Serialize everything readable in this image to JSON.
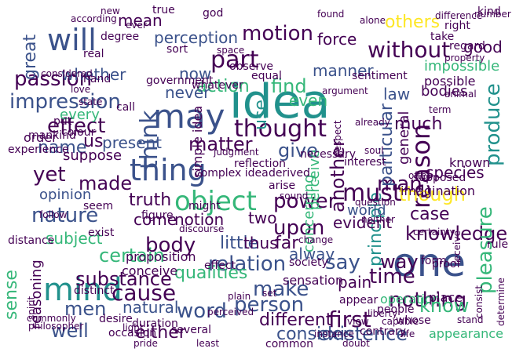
{
  "palette": {
    "purple": "#440154",
    "indigo": "#3b528b",
    "blue": "#31688e",
    "teal": "#21918c",
    "green": "#35b779",
    "lime": "#90d743",
    "yellow": "#fde725",
    "darkblue": "#2c3e7a"
  },
  "words": [
    {
      "text": "idea",
      "color": "#21918c"
    },
    {
      "text": "one",
      "color": "#3b528b"
    },
    {
      "text": "mind",
      "color": "#21918c"
    },
    {
      "text": "will",
      "color": "#3b528b"
    },
    {
      "text": "may",
      "color": "#3b528b"
    },
    {
      "text": "thing",
      "color": "#3b528b"
    },
    {
      "text": "object",
      "color": "#35b779"
    },
    {
      "text": "reason",
      "color": "#440154"
    },
    {
      "text": "without",
      "color": "#440154"
    },
    {
      "text": "think",
      "color": "#3b528b"
    },
    {
      "text": "part",
      "color": "#440154"
    },
    {
      "text": "passion",
      "color": "#440154"
    },
    {
      "text": "impression",
      "color": "#3b528b"
    },
    {
      "text": "action",
      "color": "#35b779"
    },
    {
      "text": "motion",
      "color": "#440154"
    },
    {
      "text": "find",
      "color": "#35b779"
    },
    {
      "text": "man",
      "color": "#440154"
    },
    {
      "text": "effect",
      "color": "#440154"
    },
    {
      "text": "thought",
      "color": "#440154"
    },
    {
      "text": "principle",
      "color": "#21918c"
    },
    {
      "text": "particular",
      "color": "#3b528b"
    },
    {
      "text": "produce",
      "color": "#21918c"
    },
    {
      "text": "another",
      "color": "#440154"
    },
    {
      "text": "nature",
      "color": "#3b528b"
    },
    {
      "text": "certain",
      "color": "#35b779"
    },
    {
      "text": "substance",
      "color": "#440154"
    },
    {
      "text": "cause",
      "color": "#440154"
    },
    {
      "text": "sense",
      "color": "#35b779"
    },
    {
      "text": "make",
      "color": "#3b528b"
    },
    {
      "text": "men",
      "color": "#3b528b"
    },
    {
      "text": "relation",
      "color": "#3b528b"
    },
    {
      "text": "person",
      "color": "#3b528b"
    },
    {
      "text": "different",
      "color": "#440154"
    },
    {
      "text": "nothing",
      "color": "#440154"
    },
    {
      "text": "knowledge",
      "color": "#440154"
    },
    {
      "text": "pleasure",
      "color": "#35b779"
    },
    {
      "text": "time",
      "color": "#440154"
    },
    {
      "text": "say",
      "color": "#3b528b"
    },
    {
      "text": "must",
      "color": "#440154"
    },
    {
      "text": "upon",
      "color": "#440154"
    },
    {
      "text": "power",
      "color": "#440154"
    },
    {
      "text": "though",
      "color": "#fde725"
    },
    {
      "text": "made",
      "color": "#440154"
    },
    {
      "text": "word",
      "color": "#3b528b"
    },
    {
      "text": "either",
      "color": "#440154"
    },
    {
      "text": "first",
      "color": "#440154"
    },
    {
      "text": "existence",
      "color": "#3b528b"
    },
    {
      "text": "well",
      "color": "#3b528b"
    },
    {
      "text": "great",
      "color": "#3b528b"
    },
    {
      "text": "others",
      "color": "#fde725"
    },
    {
      "text": "good",
      "color": "#440154"
    },
    {
      "text": "much",
      "color": "#440154"
    },
    {
      "text": "law",
      "color": "#3b528b"
    },
    {
      "text": "name",
      "color": "#3b528b"
    },
    {
      "text": "us",
      "color": "#440154"
    },
    {
      "text": "matter",
      "color": "#440154"
    },
    {
      "text": "give",
      "color": "#3b528b"
    },
    {
      "text": "yet",
      "color": "#440154"
    },
    {
      "text": "truth",
      "color": "#440154"
    },
    {
      "text": "case",
      "color": "#440154"
    },
    {
      "text": "body",
      "color": "#440154"
    },
    {
      "text": "know",
      "color": "#35b779"
    },
    {
      "text": "way",
      "color": "#440154"
    },
    {
      "text": "consider",
      "color": "#3b528b"
    },
    {
      "text": "qualities",
      "color": "#35b779"
    },
    {
      "text": "notion",
      "color": "#440154"
    },
    {
      "text": "present",
      "color": "#3b528b"
    },
    {
      "text": "whether",
      "color": "#3b528b"
    },
    {
      "text": "perception",
      "color": "#3b528b"
    },
    {
      "text": "force",
      "color": "#440154"
    },
    {
      "text": "never",
      "color": "#3b528b"
    },
    {
      "text": "use",
      "color": "#21918c"
    },
    {
      "text": "even",
      "color": "#35b779"
    },
    {
      "text": "every",
      "color": "#35b779"
    },
    {
      "text": "natural",
      "color": "#3b528b"
    },
    {
      "text": "suppose",
      "color": "#440154"
    },
    {
      "text": "little",
      "color": "#3b528b"
    },
    {
      "text": "two",
      "color": "#440154"
    },
    {
      "text": "come",
      "color": "#440154"
    },
    {
      "text": "far",
      "color": "#440154"
    },
    {
      "text": "thus",
      "color": "#440154"
    },
    {
      "text": "evident",
      "color": "#440154"
    },
    {
      "text": "alway",
      "color": "#3b528b"
    },
    {
      "text": "world",
      "color": "#3b528b"
    },
    {
      "text": "opinion",
      "color": "#3b528b"
    },
    {
      "text": "subject",
      "color": "#35b779"
    },
    {
      "text": "reasoning",
      "color": "#440154"
    },
    {
      "text": "pain",
      "color": "#440154"
    },
    {
      "text": "species",
      "color": "#440154"
    },
    {
      "text": "imagination",
      "color": "#440154"
    },
    {
      "text": "mean",
      "color": "#440154"
    },
    {
      "text": "manner",
      "color": "#3b528b"
    },
    {
      "text": "now",
      "color": "#3b528b"
    },
    {
      "text": "simple idea",
      "color": "#440154"
    },
    {
      "text": "general",
      "color": "#440154"
    },
    {
      "text": "perceive",
      "color": "#35b779"
    },
    {
      "text": "concerning",
      "color": "#35b779"
    },
    {
      "text": "appearance",
      "color": "#35b779"
    },
    {
      "text": "operation",
      "color": "#35b779"
    },
    {
      "text": "sensation",
      "color": "#440154"
    },
    {
      "text": "bodies",
      "color": "#440154"
    },
    {
      "text": "impossible",
      "color": "#35b779"
    },
    {
      "text": "possible",
      "color": "#440154"
    },
    {
      "text": "known",
      "color": "#440154"
    },
    {
      "text": "supposed",
      "color": "#440154"
    },
    {
      "text": "proposition",
      "color": "#440154"
    },
    {
      "text": "conceive",
      "color": "#440154"
    },
    {
      "text": "several",
      "color": "#440154"
    },
    {
      "text": "society",
      "color": "#440154"
    },
    {
      "text": "common",
      "color": "#440154"
    },
    {
      "text": "derived",
      "color": "#440154"
    },
    {
      "text": "order",
      "color": "#440154"
    },
    {
      "text": "experience",
      "color": "#440154"
    },
    {
      "text": "effect ",
      "color": "#440154"
    },
    {
      "text": "complex idea",
      "color": "#440154"
    },
    {
      "text": "distinct",
      "color": "#440154"
    },
    {
      "text": "desire",
      "color": "#440154"
    },
    {
      "text": "distance",
      "color": "#440154"
    },
    {
      "text": "proof",
      "color": "#440154"
    },
    {
      "text": "rule",
      "color": "#440154"
    },
    {
      "text": "place",
      "color": "#440154"
    },
    {
      "text": "people",
      "color": "#440154"
    },
    {
      "text": "appear",
      "color": "#440154"
    },
    {
      "text": "contrary",
      "color": "#440154"
    },
    {
      "text": "form",
      "color": "#440154"
    },
    {
      "text": "whose",
      "color": "#440154"
    },
    {
      "text": "duration",
      "color": "#440154"
    },
    {
      "text": "occasion",
      "color": "#440154"
    },
    {
      "text": "true",
      "color": "#440154"
    },
    {
      "text": "god",
      "color": "#440154"
    },
    {
      "text": "take",
      "color": "#440154"
    },
    {
      "text": "kind",
      "color": "#440154"
    },
    {
      "text": "right",
      "color": "#440154"
    },
    {
      "text": "regard",
      "color": "#440154"
    },
    {
      "text": "sort",
      "color": "#440154"
    },
    {
      "text": "degree",
      "color": "#440154"
    },
    {
      "text": "observe",
      "color": "#440154"
    },
    {
      "text": "equal",
      "color": "#440154"
    },
    {
      "text": "government",
      "color": "#440154"
    },
    {
      "text": "whatever",
      "color": "#440154"
    },
    {
      "text": "call",
      "color": "#440154"
    },
    {
      "text": "put",
      "color": "#440154"
    },
    {
      "text": "colour",
      "color": "#440154"
    },
    {
      "text": "mankind",
      "color": "#440154"
    },
    {
      "text": "seem",
      "color": "#440154"
    },
    {
      "text": "might",
      "color": "#440154"
    },
    {
      "text": "exist",
      "color": "#440154"
    },
    {
      "text": "figure",
      "color": "#440154"
    },
    {
      "text": "reflection",
      "color": "#440154"
    },
    {
      "text": "arise",
      "color": "#440154"
    },
    {
      "text": "necessary",
      "color": "#440154"
    },
    {
      "text": "interest",
      "color": "#440154"
    },
    {
      "text": "sentiment",
      "color": "#440154"
    },
    {
      "text": "real",
      "color": "#440154"
    },
    {
      "text": "hand",
      "color": "#440154"
    },
    {
      "text": "ever",
      "color": "#440154"
    },
    {
      "text": "found",
      "color": "#440154"
    },
    {
      "text": "number",
      "color": "#440154"
    },
    {
      "text": "difference",
      "color": "#440154"
    },
    {
      "text": "follow",
      "color": "#440154"
    },
    {
      "text": "considered",
      "color": "#440154"
    },
    {
      "text": "state",
      "color": "#440154"
    },
    {
      "text": "love",
      "color": "#440154"
    },
    {
      "text": "respect",
      "color": "#440154"
    },
    {
      "text": "philosopher",
      "color": "#440154"
    },
    {
      "text": "commonly",
      "color": "#440154"
    },
    {
      "text": "spirit",
      "color": "#440154"
    },
    {
      "text": "liberty",
      "color": "#440154"
    },
    {
      "text": "instance",
      "color": "#440154"
    },
    {
      "text": "view",
      "color": "#440154"
    },
    {
      "text": "capable",
      "color": "#440154"
    },
    {
      "text": "life",
      "color": "#440154"
    },
    {
      "text": "doubt",
      "color": "#440154"
    },
    {
      "text": "least",
      "color": "#440154"
    },
    {
      "text": "pride",
      "color": "#440154"
    },
    {
      "text": "already",
      "color": "#440154"
    },
    {
      "text": "certainty",
      "color": "#440154"
    },
    {
      "text": "often",
      "color": "#440154"
    },
    {
      "text": "stand",
      "color": "#440154"
    },
    {
      "text": "receive",
      "color": "#440154"
    },
    {
      "text": "determine",
      "color": "#440154"
    },
    {
      "text": "consist",
      "color": "#440154"
    },
    {
      "text": "argument",
      "color": "#440154"
    },
    {
      "text": "neither",
      "color": "#440154"
    },
    {
      "text": "alone",
      "color": "#440154"
    },
    {
      "text": "property",
      "color": "#440154"
    },
    {
      "text": "animal",
      "color": "#440154"
    },
    {
      "text": "according",
      "color": "#440154"
    },
    {
      "text": "perceived",
      "color": "#440154"
    },
    {
      "text": "question",
      "color": "#440154"
    },
    {
      "text": "judgment",
      "color": "#440154"
    },
    {
      "text": "change",
      "color": "#440154"
    },
    {
      "text": "sound",
      "color": "#440154"
    },
    {
      "text": "soul",
      "color": "#440154"
    },
    {
      "text": "discourse",
      "color": "#440154"
    },
    {
      "text": "space",
      "color": "#440154"
    },
    {
      "text": "term",
      "color": "#440154"
    },
    {
      "text": "new",
      "color": "#440154"
    },
    {
      "text": "light",
      "color": "#440154"
    },
    {
      "text": "set",
      "color": "#440154"
    },
    {
      "text": "plain",
      "color": "#440154"
    },
    {
      "text": "understand",
      "color": "#440154"
    },
    {
      "text": "affection",
      "color": "#440154"
    },
    {
      "text": "principal",
      "color": "#440154"
    },
    {
      "text": "hath",
      "color": "#440154"
    },
    {
      "text": "indeed",
      "color": "#440154"
    },
    {
      "text": "beyond",
      "color": "#440154"
    },
    {
      "text": "proceed",
      "color": "#440154"
    },
    {
      "text": "together",
      "color": "#440154"
    }
  ]
}
